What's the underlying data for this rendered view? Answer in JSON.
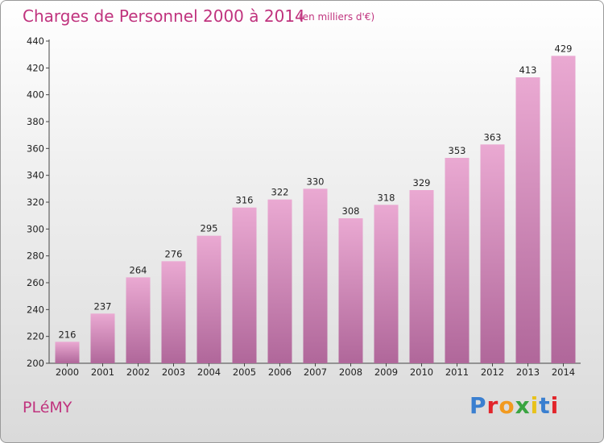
{
  "header": {
    "title": "Charges de Personnel 2000 à 2014",
    "subtitle": "(en milliers d'€)"
  },
  "commune": "PLéMY",
  "logo": {
    "text": "Proxiti",
    "letter_colors": [
      "#3a7fd0",
      "#e2252b",
      "#f29a1f",
      "#3aa441",
      "#e8c21a",
      "#3a7fd0",
      "#e2252b"
    ]
  },
  "colors": {
    "bar_top": "#eaa9d2",
    "bar_bottom": "#b0679a",
    "text": "#c0337e"
  },
  "chart_data": {
    "type": "bar",
    "title": "Charges de Personnel 2000 à 2014",
    "subtitle": "(en milliers d'€)",
    "xlabel": "",
    "ylabel": "",
    "categories": [
      "2000",
      "2001",
      "2002",
      "2003",
      "2004",
      "2005",
      "2006",
      "2007",
      "2008",
      "2009",
      "2010",
      "2011",
      "2012",
      "2013",
      "2014"
    ],
    "values": [
      216,
      237,
      264,
      276,
      295,
      316,
      322,
      330,
      308,
      318,
      329,
      353,
      363,
      413,
      429
    ],
    "ylim": [
      200,
      440
    ],
    "yticks": [
      200,
      220,
      240,
      260,
      280,
      300,
      320,
      340,
      360,
      380,
      400,
      420,
      440
    ],
    "grid": false,
    "data_labels": true
  }
}
